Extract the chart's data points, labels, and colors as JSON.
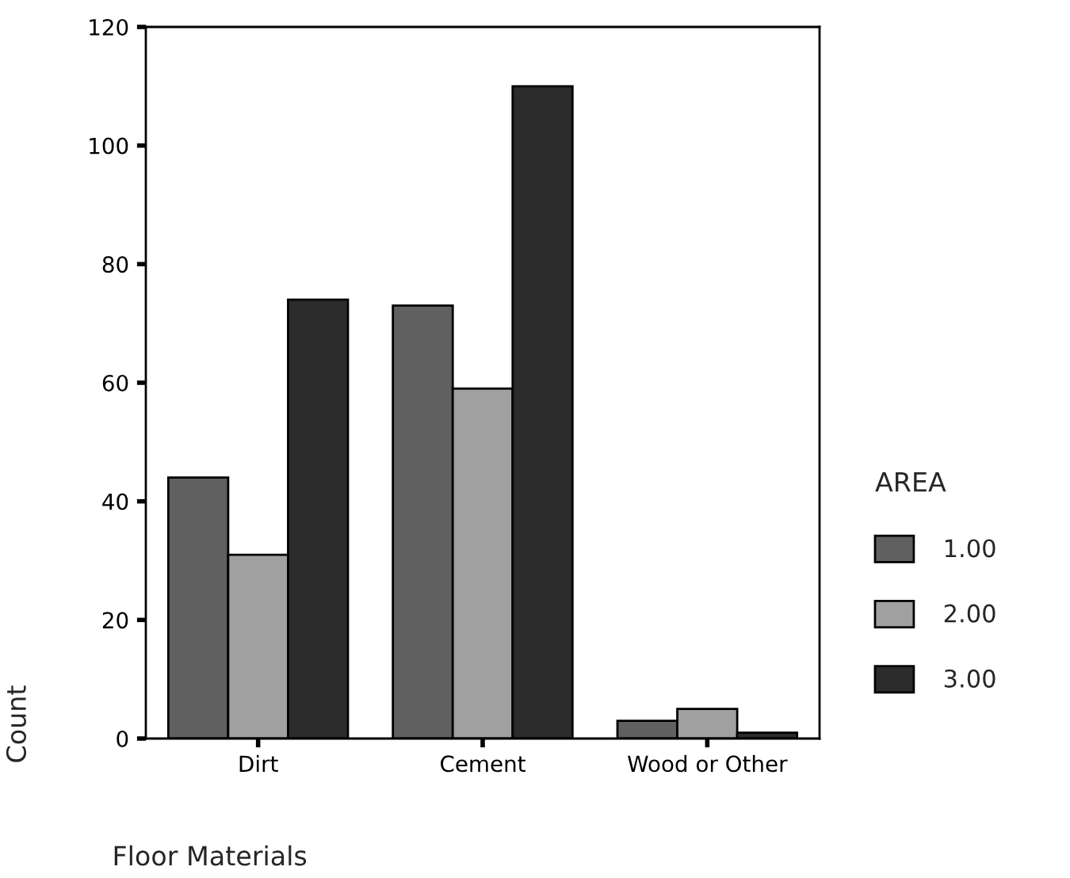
{
  "chart_data": {
    "type": "bar",
    "xlabel": "Floor Materials",
    "ylabel": "Count",
    "legend_title": "AREA",
    "categories": [
      "Dirt",
      "Cement",
      "Wood or Other"
    ],
    "series": [
      {
        "name": "1.00",
        "color": "#606060",
        "values": [
          44,
          73,
          3
        ]
      },
      {
        "name": "2.00",
        "color": "#a0a0a0",
        "values": [
          31,
          59,
          5
        ]
      },
      {
        "name": "3.00",
        "color": "#2c2c2c",
        "values": [
          74,
          110,
          1
        ]
      }
    ],
    "ylim": [
      0,
      120
    ],
    "yticks": [
      0,
      20,
      40,
      60,
      80,
      100,
      120
    ],
    "grid": false,
    "legend": "right"
  }
}
